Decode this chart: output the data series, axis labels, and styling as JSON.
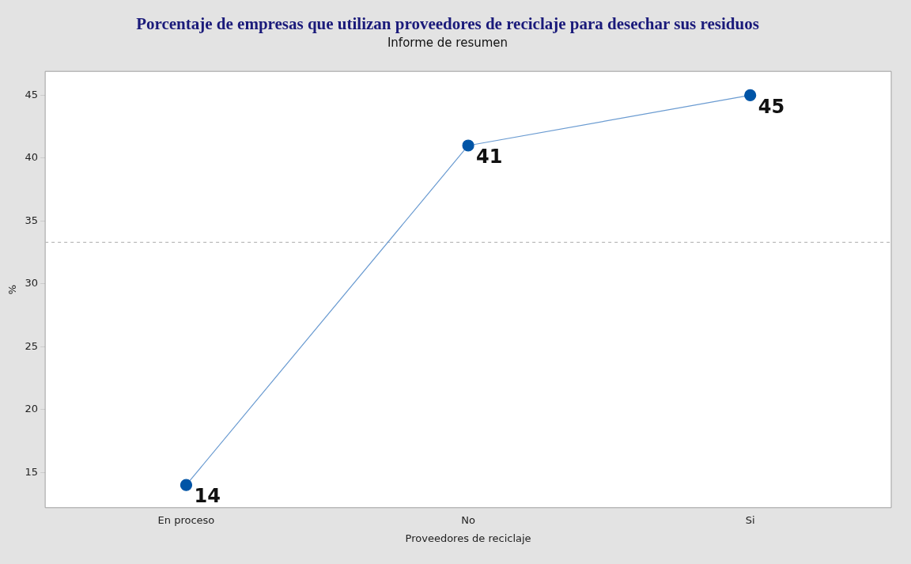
{
  "chart_data": {
    "type": "line",
    "title": "Porcentaje de empresas que utilizan proveedores de reciclaje para desechar sus residuos",
    "subtitle": "Informe de resumen",
    "xlabel": "Proveedores de reciclaje",
    "ylabel": "%",
    "categories": [
      "En proceso",
      "No",
      "Si"
    ],
    "series": [
      {
        "color": "#0054a6",
        "values": [
          14,
          41,
          45
        ]
      }
    ],
    "ylim": [
      12.2,
      46.9
    ],
    "yticks": [
      15,
      20,
      25,
      30,
      35,
      40,
      45
    ],
    "ref_lines": [
      {
        "axis": "y",
        "value": 33.3,
        "color": "#bbbbbb",
        "line_style": "dashed"
      }
    ],
    "data_labels": true,
    "marker": "circle",
    "line_style": "solid",
    "grid": false,
    "legend": false
  }
}
